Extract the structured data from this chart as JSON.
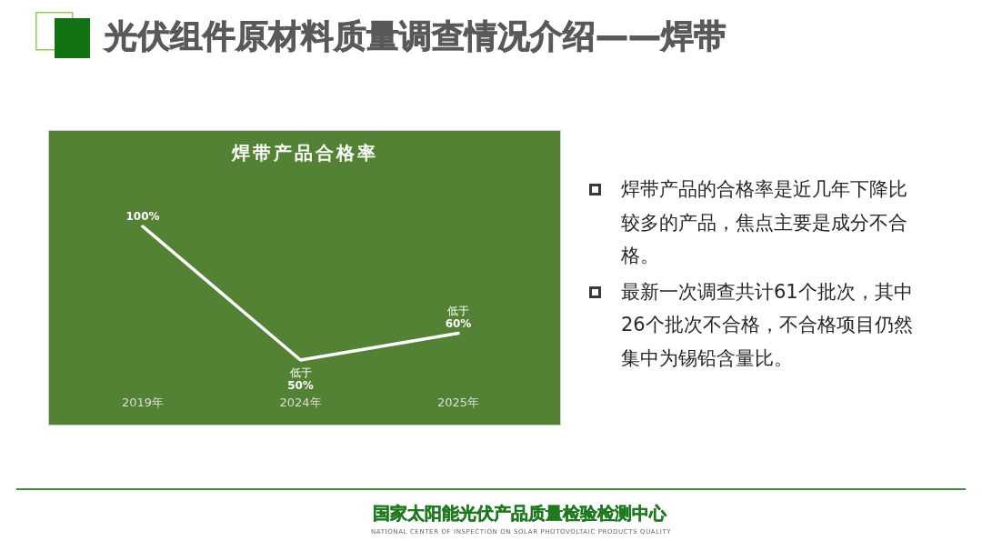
{
  "chart_data": {
    "type": "line",
    "title": "焊带产品合格率",
    "categories": [
      "2019年",
      "2024年",
      "2025年"
    ],
    "series": [
      {
        "color": "#ffffff",
        "values": [
          100,
          50,
          60
        ],
        "value_labels": [
          "100%",
          "低于\n50%",
          "低于\n60%"
        ]
      }
    ],
    "tick_labels": "x",
    "line_style": "solid",
    "annotations": [
      "光伏组件原材料质量调查情况介绍——焊带",
      "焊带产品的合格率是近几年下降比较多的产品，焦点主要是成分不合格。",
      "最新一次调查共计61个批次，其中26个批次不合格，不合格项目仍然集中为锡铅含量比。",
      "国家太阳能光伏产品质量检验检测中心",
      "NATIONAL CENTER OF INSPECTION ON SOLAR PHOTOVOLTAIC PRODUCTS QUALITY"
    ]
  }
}
